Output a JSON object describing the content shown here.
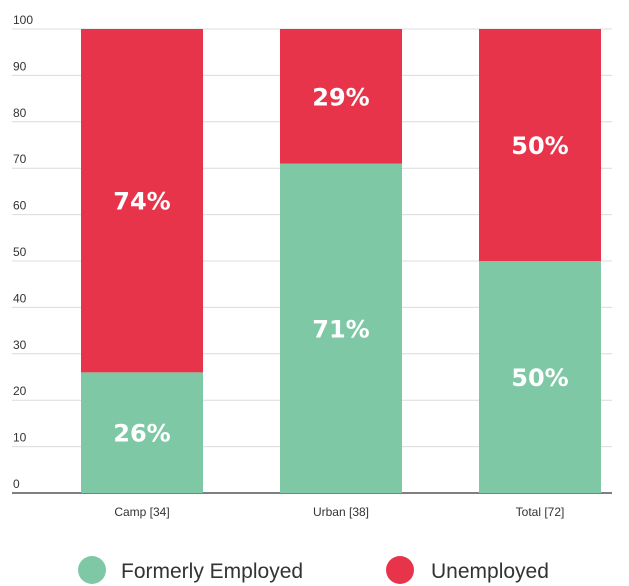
{
  "chart_data": {
    "type": "bar",
    "stacked": true,
    "categories": [
      "Camp [34]",
      "Urban [38]",
      "Total [72]"
    ],
    "series": [
      {
        "name": "Formerly Employed",
        "color": "#7ec8a6",
        "values": [
          26,
          71,
          50
        ],
        "labels": [
          "26%",
          "71%",
          "50%"
        ]
      },
      {
        "name": "Unemployed",
        "color": "#e8344a",
        "values": [
          74,
          29,
          50
        ],
        "labels": [
          "74%",
          "29%",
          "50%"
        ]
      }
    ],
    "ylim": [
      0,
      100
    ],
    "yticks": [
      0,
      10,
      20,
      30,
      40,
      50,
      60,
      70,
      80,
      90,
      100
    ],
    "ytick_labels": [
      "0",
      "10",
      "20",
      "30",
      "40",
      "50",
      "60",
      "70",
      "80",
      "90",
      "100"
    ],
    "grid": true,
    "legend_position": "bottom-center",
    "title": "",
    "xlabel": "",
    "ylabel": ""
  }
}
